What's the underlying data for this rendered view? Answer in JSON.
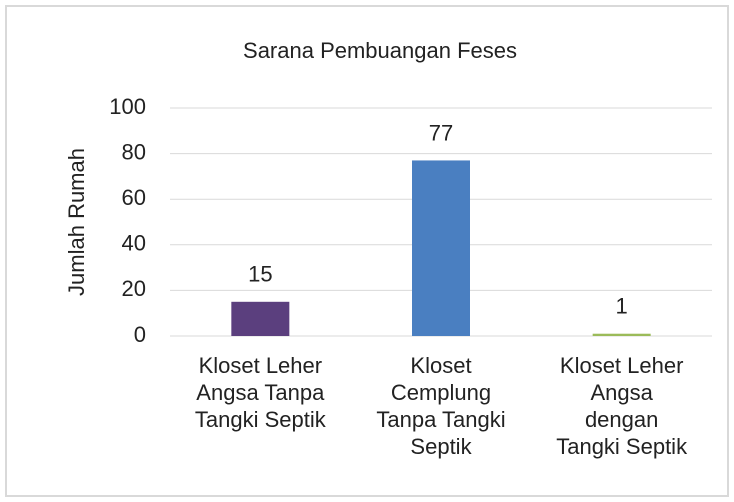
{
  "chart_data": {
    "type": "bar",
    "title": "Sarana Pembuangan  Feses",
    "y_label": "Jumlah Rumah",
    "categories": [
      "Kloset Leher\nAngsa Tanpa\nTangki Septik",
      "Kloset\nCemplung\nTanpa Tangki\nSeptik",
      "Kloset Leher\nAngsa\ndengan\nTangki Septik"
    ],
    "values": [
      15,
      77,
      1
    ],
    "colors": [
      "#5b3f7e",
      "#4a7fc1",
      "#9bbb59"
    ],
    "ylim": [
      0,
      100
    ],
    "yticks": [
      0,
      20,
      40,
      60,
      80,
      100
    ],
    "grid": true
  }
}
